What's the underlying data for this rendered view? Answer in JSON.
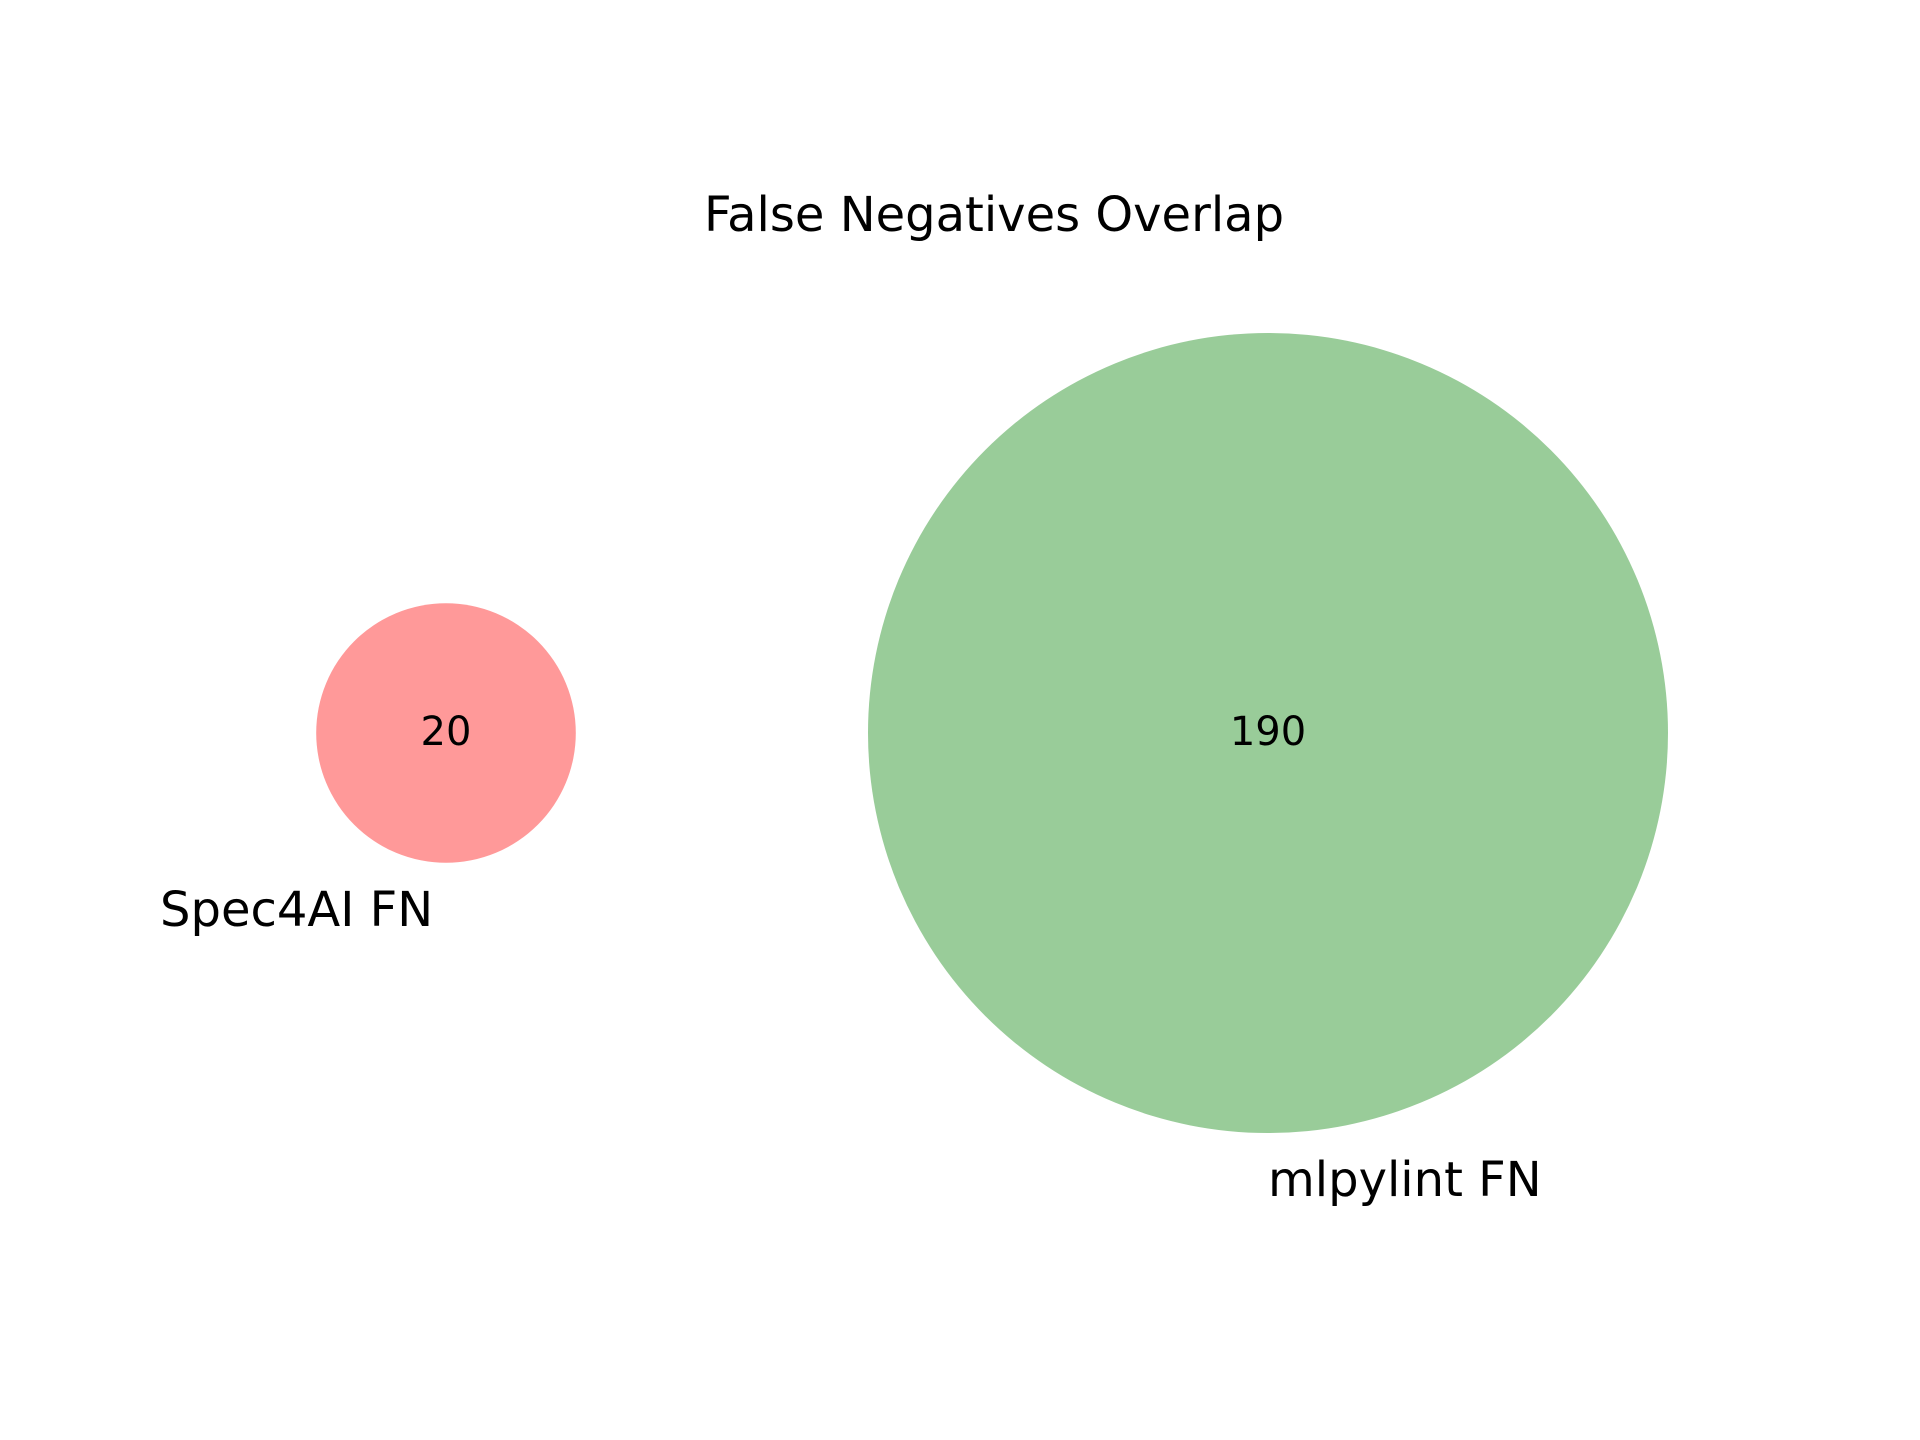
{
  "chart_data": {
    "type": "venn",
    "title": "False Negatives Overlap",
    "sets": [
      {
        "name": "Spec4AI FN",
        "only_count": 20,
        "color": "#ff9999"
      },
      {
        "name": "mlpylint FN",
        "only_count": 190,
        "color": "#99cc99"
      }
    ],
    "intersection": 0,
    "labels": {
      "set_a_name": "Spec4AI FN",
      "set_b_name": "mlpylint FN",
      "set_a_count": "20",
      "set_b_count": "190"
    }
  }
}
